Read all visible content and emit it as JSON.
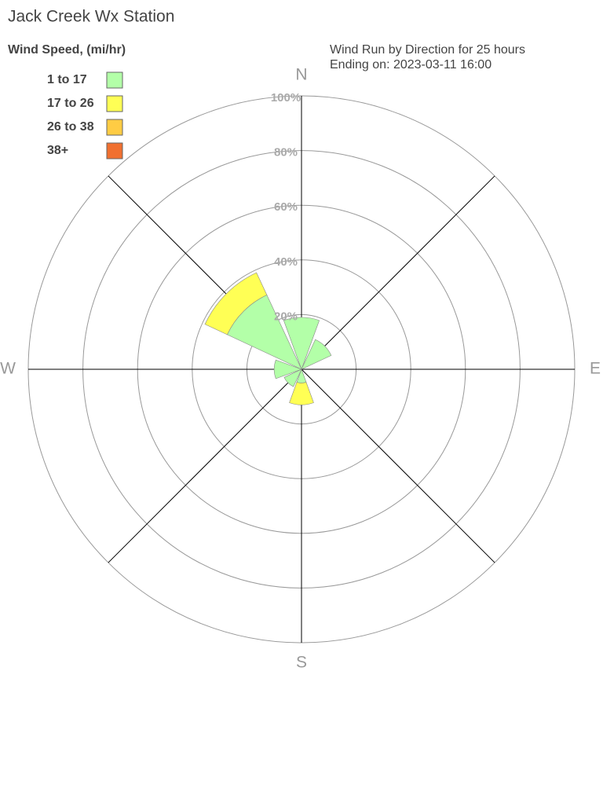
{
  "chart_data": {
    "type": "windrose",
    "title": "Jack Creek Wx Station",
    "legend_title": "Wind Speed, (mi/hr)",
    "subtitle": [
      "Wind Run by Direction for 25 hours",
      "Ending on: 2023-03-11 16:00"
    ],
    "categories": [
      "N",
      null,
      "E",
      null,
      "S",
      null,
      "W",
      null
    ],
    "series": [
      {
        "name": "1 to 17",
        "color": "#b3ffa8",
        "values": [
          19,
          12,
          0,
          0,
          5,
          7,
          10,
          30
        ]
      },
      {
        "name": "17 to 26",
        "color": "#ffff55",
        "values": [
          0,
          0,
          0,
          0,
          8,
          0,
          0,
          9
        ]
      },
      {
        "name": "26 to 38",
        "color": "#ffcc44",
        "values": [
          0,
          0,
          0,
          0,
          0,
          0,
          0,
          0
        ]
      },
      {
        "name": "38+",
        "color": "#f07030",
        "values": [
          0,
          0,
          0,
          0,
          0,
          0,
          0,
          0
        ]
      }
    ],
    "rlim": [
      0,
      100
    ],
    "rticks": [
      {
        "value": 20,
        "label": "20%"
      },
      {
        "value": 40,
        "label": "40%"
      },
      {
        "value": 60,
        "label": "60%"
      },
      {
        "value": 80,
        "label": "80%"
      },
      {
        "value": 100,
        "label": "100%"
      }
    ],
    "legend": "upper left"
  }
}
